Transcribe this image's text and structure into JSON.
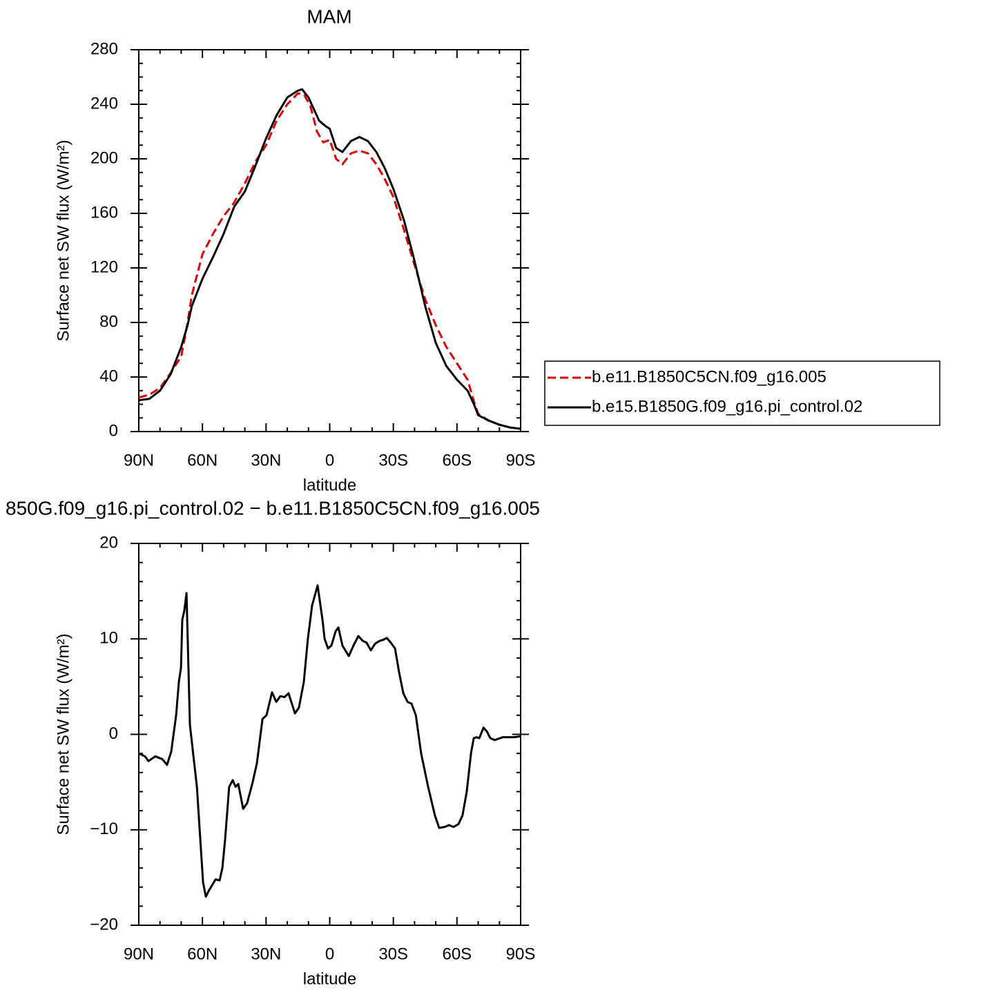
{
  "chart_data": [
    {
      "type": "line",
      "title": "MAM",
      "x_label": "latitude",
      "y_label": "Surface net SW flux (W/m²)",
      "xlim": [
        90,
        -90
      ],
      "xticks": [
        {
          "value": 90,
          "label": "90N"
        },
        {
          "value": 60,
          "label": "60N"
        },
        {
          "value": 30,
          "label": "30N"
        },
        0,
        {
          "value": -30,
          "label": "30S"
        },
        {
          "value": -60,
          "label": "60S"
        },
        {
          "value": -90,
          "label": "90S"
        }
      ],
      "xminorticks": [
        80,
        70,
        50,
        40,
        20,
        10,
        -10,
        -20,
        -40,
        -50,
        -70,
        -80
      ],
      "ylim": [
        0,
        280
      ],
      "yticks": [
        0,
        40,
        80,
        120,
        160,
        200,
        240,
        280
      ],
      "yminorticks": [
        10,
        20,
        30,
        50,
        60,
        70,
        90,
        100,
        110,
        130,
        140,
        150,
        170,
        180,
        190,
        210,
        220,
        230,
        250,
        260,
        270
      ],
      "legend": "right",
      "series": [
        {
          "name": "b.e11.B1850C5CN.f09_g16.005",
          "color": "#e00000",
          "dash": true,
          "x": [
            90,
            85,
            80,
            75,
            70,
            67,
            65,
            60,
            55,
            50,
            45,
            40,
            35,
            30,
            25,
            20,
            15,
            12,
            9,
            6,
            3,
            0,
            -3,
            -6,
            -10,
            -14,
            -18,
            -22,
            -26,
            -30,
            -35,
            -40,
            -45,
            -50,
            -55,
            -60,
            -65,
            -68,
            -70,
            -75,
            -80,
            -85,
            -90
          ],
          "values": [
            25,
            27,
            32,
            43,
            55,
            80,
            100,
            130,
            145,
            158,
            168,
            182,
            198,
            210,
            228,
            240,
            248,
            247,
            238,
            220,
            212,
            214,
            200,
            196,
            204,
            206,
            204,
            196,
            185,
            172,
            148,
            122,
            97,
            78,
            62,
            50,
            38,
            22,
            13,
            8,
            5,
            3,
            2
          ]
        },
        {
          "name": "b.e15.B1850G.f09_g16.pi_control.02",
          "color": "#000000",
          "x": [
            90,
            85,
            80,
            75,
            70,
            67,
            65,
            60,
            55,
            50,
            45,
            40,
            35,
            30,
            25,
            20,
            15,
            13,
            10,
            5,
            2,
            0,
            -3,
            -6,
            -10,
            -14,
            -18,
            -22,
            -26,
            -30,
            -35,
            -40,
            -45,
            -50,
            -55,
            -60,
            -65,
            -68,
            -70,
            -75,
            -80,
            -85,
            -90
          ],
          "values": [
            23,
            24,
            30,
            42,
            62,
            78,
            92,
            112,
            128,
            145,
            165,
            176,
            195,
            215,
            232,
            245,
            250,
            251,
            245,
            228,
            224,
            222,
            208,
            205,
            213,
            216,
            213,
            205,
            193,
            178,
            155,
            125,
            92,
            65,
            48,
            38,
            30,
            20,
            12,
            8,
            5,
            3,
            2
          ]
        }
      ]
    },
    {
      "type": "line",
      "title": "850G.f09_g16.pi_control.02 − b.e11.B1850C5CN.f09_g16.005",
      "x_label": "latitude",
      "y_label": "Surface net SW flux (W/m²)",
      "xlim": [
        90,
        -90
      ],
      "xticks": [
        {
          "value": 90,
          "label": "90N"
        },
        {
          "value": 60,
          "label": "60N"
        },
        {
          "value": 30,
          "label": "30N"
        },
        0,
        {
          "value": -30,
          "label": "30S"
        },
        {
          "value": -60,
          "label": "60S"
        },
        {
          "value": -90,
          "label": "90S"
        }
      ],
      "xminorticks": [
        80,
        70,
        50,
        40,
        20,
        10,
        -10,
        -20,
        -40,
        -50,
        -70,
        -80
      ],
      "ylim": [
        -20,
        20
      ],
      "yticks": [
        {
          "value": -20,
          "label": "−20"
        },
        {
          "value": -10,
          "label": "−10"
        },
        0,
        10,
        20
      ],
      "yminorticks": [
        -18,
        -16,
        -14,
        -12,
        -8,
        -6,
        -4,
        -2,
        2,
        4,
        6,
        8,
        12,
        14,
        16,
        18
      ],
      "series": [
        {
          "color": "#000000",
          "x": [
            90,
            87.1,
            85.4,
            82.2,
            78.9,
            76.7,
            74.7,
            72.4,
            71.1,
            70.1,
            69.5,
            68.5,
            67.5,
            65.9,
            62.6,
            61.3,
            59.7,
            58.4,
            56.8,
            53.8,
            51.9,
            50.6,
            49.3,
            47.4,
            45.7,
            44.4,
            43.1,
            40.8,
            38.9,
            36.3,
            34.3,
            31.7,
            29.8,
            27.2,
            25.2,
            23.3,
            21.3,
            19.4,
            16.4,
            14.5,
            12.2,
            10.3,
            8.3,
            5.7,
            3.4,
            2.4,
            0.8,
            -0.8,
            -2.8,
            -4.1,
            -6.0,
            -9.0,
            -11.2,
            -13.5,
            -15.5,
            -17.4,
            -19.4,
            -21.4,
            -23.6,
            -25.2,
            -26.9,
            -28.8,
            -30.8,
            -32.7,
            -34.7,
            -36.7,
            -38.6,
            -40.6,
            -43.1,
            -46.4,
            -49.6,
            -51.6,
            -54.2,
            -56.2,
            -58.4,
            -60.7,
            -62.6,
            -64.6,
            -66.6,
            -67.9,
            -69.2,
            -70.5,
            -72.5,
            -74.1,
            -75.7,
            -77.7,
            -81.6,
            -87.2,
            -90
          ],
          "values": [
            -2,
            -2.3,
            -2.8,
            -2.3,
            -2.6,
            -3.2,
            -1.8,
            2,
            5.5,
            7,
            12,
            13,
            14.8,
            1,
            -5.5,
            -10,
            -15.5,
            -17,
            -16.3,
            -15.2,
            -15.3,
            -14,
            -11,
            -5.5,
            -4.8,
            -5.5,
            -5.2,
            -7.8,
            -7.2,
            -5,
            -3,
            1.6,
            2,
            4.4,
            3.4,
            4,
            3.9,
            4.3,
            2.2,
            2.8,
            5.5,
            10,
            13.5,
            15.6,
            12,
            10,
            9,
            9.3,
            10.8,
            11.2,
            9.3,
            8.2,
            9.3,
            10.3,
            9.8,
            9.6,
            8.8,
            9.5,
            9.8,
            9.9,
            10.1,
            9.6,
            9.0,
            6.5,
            4.3,
            3.4,
            3.2,
            2,
            -2,
            -5.5,
            -8.5,
            -9.8,
            -9.7,
            -9.5,
            -9.7,
            -9.4,
            -8.5,
            -6,
            -2,
            -0.4,
            -0.3,
            -0.4,
            0.7,
            0.3,
            -0.4,
            -0.6,
            -0.3,
            -0.3,
            -0.2
          ]
        }
      ]
    }
  ]
}
